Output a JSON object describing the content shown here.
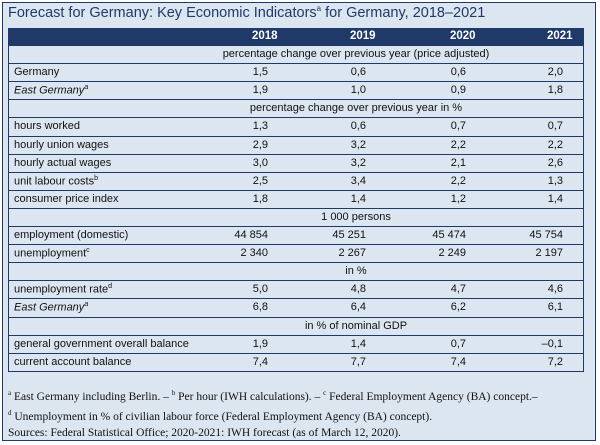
{
  "title": "Forecast for Germany: Key Economic Indicators",
  "title_sup": "a",
  "title_suffix": " for Germany, 2018–2021",
  "columns": [
    "2018",
    "2019",
    "2020",
    "2021"
  ],
  "sections": [
    {
      "caption": "percentage change over previous year (price adjusted)",
      "rows": [
        {
          "label": "Germany",
          "sup": "",
          "italic": false,
          "values": [
            "1,5",
            "0,6",
            "0,6",
            "2,0"
          ]
        },
        {
          "label": "East Germany",
          "sup": "a",
          "italic": true,
          "values": [
            "1,9",
            "1,0",
            "0,9",
            "1,8"
          ]
        }
      ]
    },
    {
      "caption": "percentage change over previous year in %",
      "rows": [
        {
          "label": "hours worked",
          "sup": "",
          "italic": false,
          "values": [
            "1,3",
            "0,6",
            "0,7",
            "0,7"
          ]
        },
        {
          "label": "hourly union wages",
          "sup": "",
          "italic": false,
          "values": [
            "2,9",
            "3,2",
            "2,2",
            "2,2"
          ]
        },
        {
          "label": "hourly actual wages",
          "sup": "",
          "italic": false,
          "values": [
            "3,0",
            "3,2",
            "2,1",
            "2,6"
          ]
        },
        {
          "label": "unit labour costs",
          "sup": "b",
          "italic": false,
          "values": [
            "2,5",
            "3,4",
            "2,2",
            "1,3"
          ]
        },
        {
          "label": "consumer price index",
          "sup": "",
          "italic": false,
          "values": [
            "1,8",
            "1,4",
            "1,2",
            "1,4"
          ]
        }
      ]
    },
    {
      "caption": "1 000 persons",
      "rows": [
        {
          "label": "employment (domestic)",
          "sup": "",
          "italic": false,
          "values": [
            "44 854",
            "45 251",
            "45 474",
            "45 754"
          ]
        },
        {
          "label": "unemployment",
          "sup": "c",
          "italic": false,
          "values": [
            "2 340",
            "2 267",
            "2 249",
            "2 197"
          ]
        }
      ]
    },
    {
      "caption": "in %",
      "rows": [
        {
          "label": "unemployment rate",
          "sup": "d",
          "italic": false,
          "values": [
            "5,0",
            "4,8",
            "4,7",
            "4,6"
          ]
        },
        {
          "label": "East Germany",
          "sup": "a",
          "italic": true,
          "values": [
            "6,8",
            "6,4",
            "6,2",
            "6,1"
          ]
        }
      ]
    },
    {
      "caption": "in % of nominal GDP",
      "rows": [
        {
          "label": "general government overall balance",
          "sup": "",
          "italic": false,
          "values": [
            "1,9",
            "1,4",
            "0,7",
            "–0,1"
          ]
        },
        {
          "label": "current account balance",
          "sup": "",
          "italic": false,
          "values": [
            "7,4",
            "7,7",
            "7,4",
            "7,2"
          ]
        }
      ]
    }
  ],
  "footnotes": [
    {
      "parts": [
        [
          "a",
          " East Germany including Berlin. – "
        ],
        [
          "b",
          " Per hour (IWH calculations). – "
        ],
        [
          "c",
          " Federal Employment Agency (BA) concept.–"
        ]
      ]
    },
    {
      "parts": [
        [
          "d",
          " Unemployment in % of civilian labour force (Federal Employment Agency (BA) concept)."
        ]
      ]
    },
    {
      "parts": [
        [
          "",
          "Sources: Federal Statistical Office; 2020-2021: IWH forecast (as of March 12, 2020)."
        ]
      ]
    }
  ]
}
